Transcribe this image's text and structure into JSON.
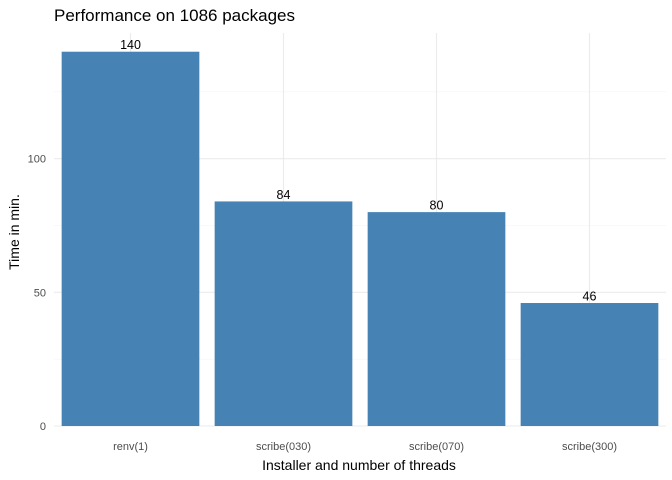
{
  "chart_data": {
    "type": "bar",
    "title": "Performance on 1086 packages",
    "xlabel": "Installer and number of threads",
    "ylabel": "Time in min.",
    "categories": [
      "renv(1)",
      "scribe(030)",
      "scribe(070)",
      "scribe(300)"
    ],
    "values": [
      140,
      84,
      80,
      46
    ],
    "data_labels": [
      "140",
      "84",
      "80",
      "46"
    ],
    "y_ticks": [
      0,
      50,
      100
    ],
    "y_tick_labels": [
      "0",
      "50",
      "100"
    ],
    "ylim": [
      0,
      147
    ],
    "grid": true,
    "legend": "none",
    "bar_color": "#4682B4"
  }
}
